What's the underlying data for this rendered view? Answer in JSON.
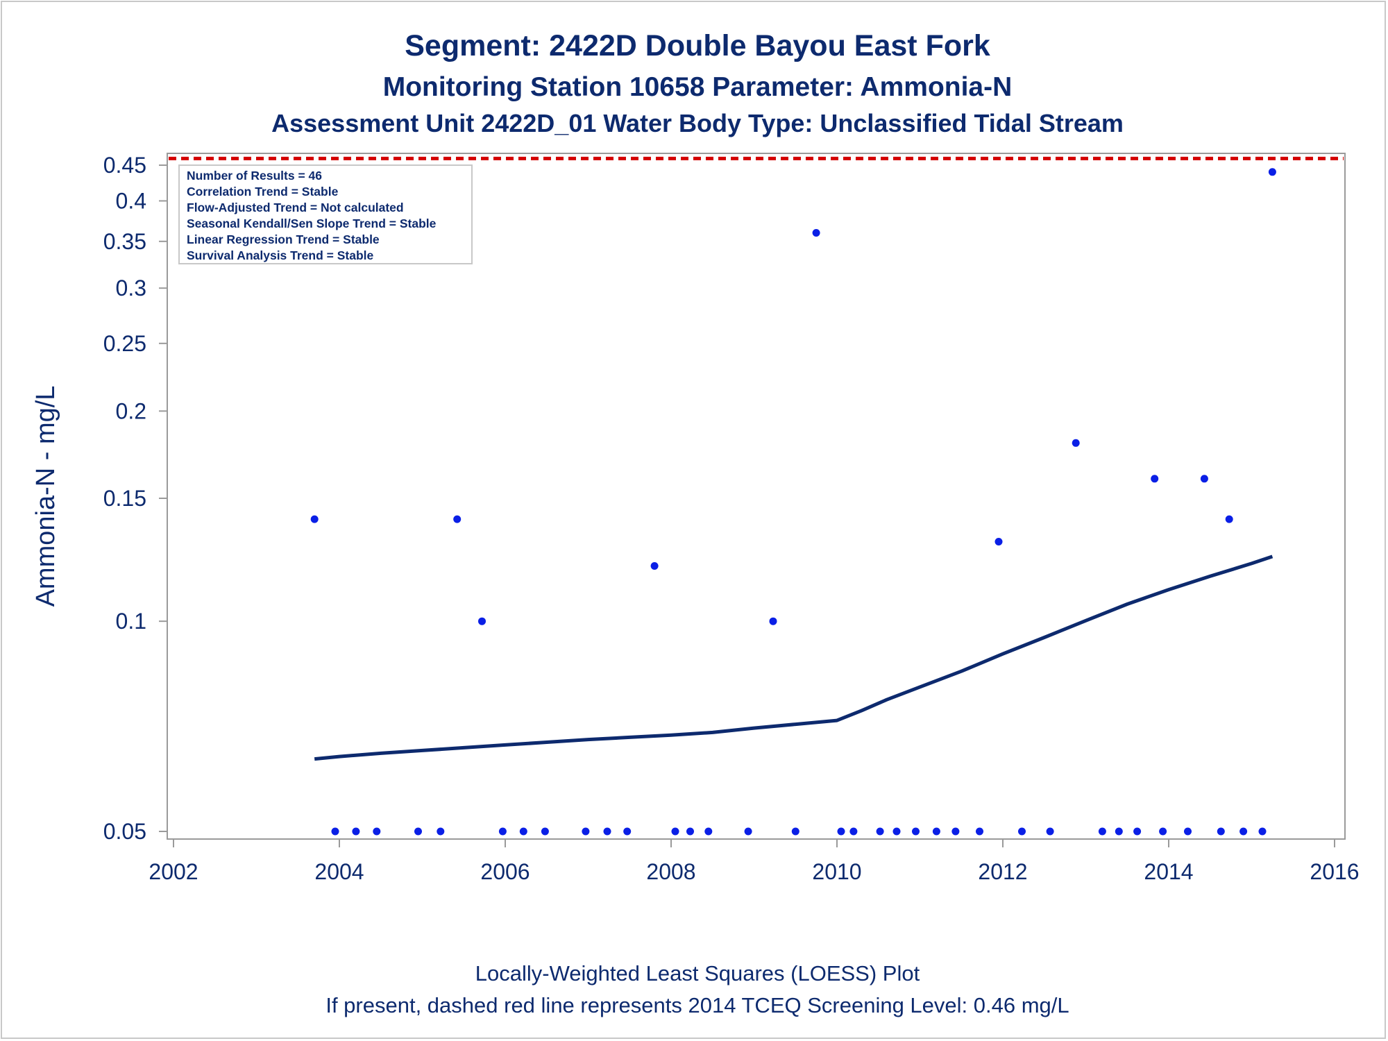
{
  "chart_data": {
    "type": "scatter",
    "title": "Segment: 2422D  Double Bayou East Fork",
    "subtitle_1": "Monitoring Station 10658 Parameter: Ammonia-N",
    "subtitle_2": "Assessment Unit 2422D_01   Water Body Type: Unclassified Tidal Stream",
    "ylabel": "Ammonia-N - mg/L",
    "xlabel": "",
    "y_scale": "log",
    "xlim": [
      2002,
      2016
    ],
    "ylim": [
      0.05,
      0.46
    ],
    "x_ticks": [
      2002,
      2004,
      2006,
      2008,
      2010,
      2012,
      2014,
      2016
    ],
    "y_ticks": [
      0.05,
      0.1,
      0.15,
      0.2,
      0.25,
      0.3,
      0.35,
      0.4,
      0.45
    ],
    "y_tick_labels": [
      "0.05",
      "0.1",
      "0.15",
      "0.2",
      "0.25",
      "0.3",
      "0.35",
      "0.4",
      "0.45"
    ],
    "inset_lines": [
      "Number of Results = 46",
      "Correlation Trend = Stable",
      "Flow-Adjusted Trend = Not calculated",
      "Seasonal Kendall/Sen Slope Trend = Stable",
      "Linear Regression Trend = Stable",
      "Survival Analysis Trend = Stable"
    ],
    "screening_level": 0.46,
    "footnotes": [
      "Locally-Weighted Least Squares (LOESS) Plot",
      "If present, dashed red line represents 2014 TCEQ Screening Level: 0.46 mg/L"
    ],
    "points": [
      [
        2003.7,
        0.14
      ],
      [
        2003.95,
        0.05
      ],
      [
        2004.2,
        0.05
      ],
      [
        2004.45,
        0.05
      ],
      [
        2004.95,
        0.05
      ],
      [
        2005.22,
        0.05
      ],
      [
        2005.42,
        0.14
      ],
      [
        2005.72,
        0.1
      ],
      [
        2005.97,
        0.05
      ],
      [
        2006.22,
        0.05
      ],
      [
        2006.48,
        0.05
      ],
      [
        2006.97,
        0.05
      ],
      [
        2007.23,
        0.05
      ],
      [
        2007.47,
        0.05
      ],
      [
        2007.8,
        0.12
      ],
      [
        2008.05,
        0.05
      ],
      [
        2008.23,
        0.05
      ],
      [
        2008.45,
        0.05
      ],
      [
        2008.93,
        0.05
      ],
      [
        2009.23,
        0.1
      ],
      [
        2009.5,
        0.05
      ],
      [
        2009.75,
        0.36
      ],
      [
        2010.05,
        0.05
      ],
      [
        2010.2,
        0.05
      ],
      [
        2010.52,
        0.05
      ],
      [
        2010.72,
        0.05
      ],
      [
        2010.95,
        0.05
      ],
      [
        2011.2,
        0.05
      ],
      [
        2011.43,
        0.05
      ],
      [
        2011.72,
        0.05
      ],
      [
        2011.95,
        0.13
      ],
      [
        2012.23,
        0.05
      ],
      [
        2012.57,
        0.05
      ],
      [
        2012.88,
        0.18
      ],
      [
        2013.2,
        0.05
      ],
      [
        2013.4,
        0.05
      ],
      [
        2013.62,
        0.05
      ],
      [
        2013.83,
        0.16
      ],
      [
        2013.93,
        0.05
      ],
      [
        2014.23,
        0.05
      ],
      [
        2014.43,
        0.16
      ],
      [
        2014.63,
        0.05
      ],
      [
        2014.73,
        0.14
      ],
      [
        2014.9,
        0.05
      ],
      [
        2015.13,
        0.05
      ],
      [
        2015.25,
        0.44
      ]
    ],
    "loess": [
      [
        2003.7,
        0.0635
      ],
      [
        2004.0,
        0.064
      ],
      [
        2004.5,
        0.0647
      ],
      [
        2005.0,
        0.0653
      ],
      [
        2005.5,
        0.0659
      ],
      [
        2006.0,
        0.0665
      ],
      [
        2006.5,
        0.0671
      ],
      [
        2007.0,
        0.0677
      ],
      [
        2007.5,
        0.0682
      ],
      [
        2008.0,
        0.0687
      ],
      [
        2008.5,
        0.0693
      ],
      [
        2009.0,
        0.0703
      ],
      [
        2009.5,
        0.0712
      ],
      [
        2010.0,
        0.0721
      ],
      [
        2010.3,
        0.0745
      ],
      [
        2010.6,
        0.0772
      ],
      [
        2011.0,
        0.0805
      ],
      [
        2011.5,
        0.0848
      ],
      [
        2012.0,
        0.0898
      ],
      [
        2012.5,
        0.0948
      ],
      [
        2013.0,
        0.1002
      ],
      [
        2013.5,
        0.1058
      ],
      [
        2014.0,
        0.111
      ],
      [
        2014.5,
        0.116
      ],
      [
        2015.0,
        0.121
      ],
      [
        2015.25,
        0.1238
      ]
    ],
    "colors": {
      "text": "#0d2a6e",
      "points": "#0a1fe6",
      "loess": "#0d2a6e",
      "screening": "#d40000",
      "axis": "#9a9a9a"
    }
  }
}
